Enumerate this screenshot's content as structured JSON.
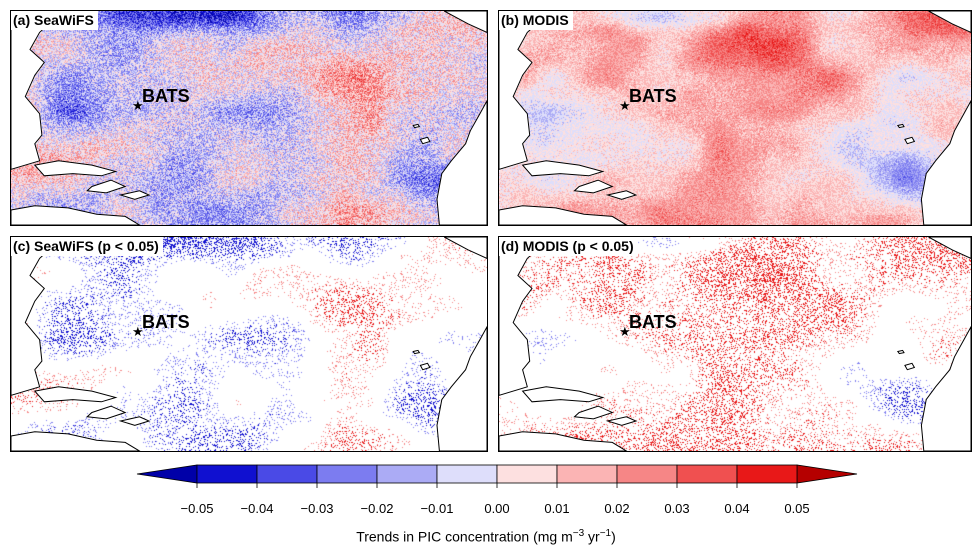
{
  "panels": [
    {
      "id": "a",
      "label": "(a) SeaWiFS",
      "variant": "full",
      "site": "BATS"
    },
    {
      "id": "b",
      "label": "(b) MODIS",
      "variant": "full",
      "site": "BATS"
    },
    {
      "id": "c",
      "label": "(c) SeaWiFS (p < 0.05)",
      "variant": "significant",
      "site": "BATS"
    },
    {
      "id": "d",
      "label": "(d) MODIS (p < 0.05)",
      "variant": "significant",
      "site": "BATS"
    }
  ],
  "site_marker": "★",
  "colorbar": {
    "ticks": [
      "−0.05",
      "−0.04",
      "−0.03",
      "−0.02",
      "−0.01",
      "0.00",
      "0.01",
      "0.02",
      "0.03",
      "0.04",
      "0.05"
    ],
    "colors": [
      "#1010d0",
      "#4a4ae6",
      "#7c7cf0",
      "#ababf5",
      "#dedefb",
      "#fde0e0",
      "#fbb4b4",
      "#f68686",
      "#f05050",
      "#e81818"
    ],
    "extend_low_color": "#0000a8",
    "extend_high_color": "#b50000",
    "title_main": "Trends in PIC concentration (mg m",
    "title_exp1": "−3",
    "title_mid": " yr",
    "title_exp2": "−1",
    "title_end": ")"
  }
}
